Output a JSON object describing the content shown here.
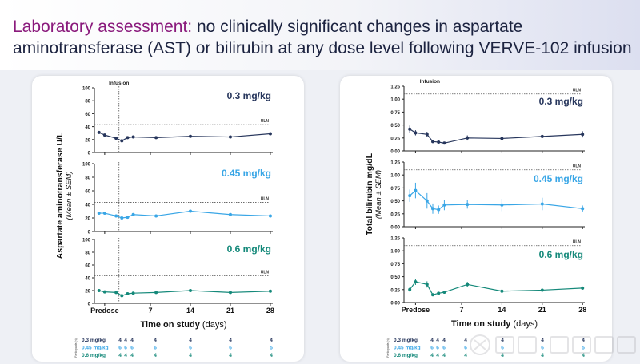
{
  "title": {
    "accent": "Laboratory assessment:",
    "rest": " no clinically significant changes in aspartate aminotransferase (AST) or bilirubin at any dose level following VERVE-102 infusion"
  },
  "watermark": "雪球 医药笔记",
  "colors": {
    "0.3 mg/kg": "#27365c",
    "0.45 mg/kg": "#39a6e6",
    "0.6 mg/kg": "#15897a",
    "accent": "#8a1a7c"
  },
  "participants": {
    "label": "Participants (n)",
    "rows": [
      {
        "dose": "0.3 mg/kg",
        "counts": [
          "4",
          "4",
          "4",
          "4",
          "4",
          "4",
          "4"
        ]
      },
      {
        "dose": "0.45 mg/kg",
        "counts": [
          "6",
          "6",
          "6",
          "6",
          "6",
          "6",
          "5"
        ]
      },
      {
        "dose": "0.6 mg/kg",
        "counts": [
          "4",
          "4",
          "4",
          "4",
          "4",
          "4",
          "4"
        ]
      }
    ]
  },
  "chart_data": [
    {
      "type": "line",
      "ylabel": "Aspartate aminotransferase U/L",
      "ylabel2": "(Mean ± SEM)",
      "xlabel_bold": "Time on study",
      "xlabel_unit": " (days)",
      "x_ticks": [
        {
          "label": "Predose",
          "x": -1
        },
        {
          "label": "7",
          "x": 7
        },
        {
          "label": "14",
          "x": 14
        },
        {
          "label": "21",
          "x": 21
        },
        {
          "label": "28",
          "x": 28
        }
      ],
      "x": [
        -2,
        -1,
        1,
        2,
        3,
        4,
        8,
        14,
        21,
        28
      ],
      "ylim": [
        0,
        100
      ],
      "y_ticks": [
        0,
        20,
        40,
        60,
        80,
        100
      ],
      "infusion": {
        "label": "Infusion",
        "x": 1.5
      },
      "uln": {
        "label": "ULN",
        "y": 43
      },
      "series": [
        {
          "name": "0.3 mg/kg",
          "values": [
            31,
            27,
            22,
            18,
            23,
            24,
            23,
            25,
            24,
            29
          ],
          "sem": [
            1,
            1,
            1,
            1,
            1,
            1,
            1,
            1,
            1,
            1
          ]
        },
        {
          "name": "0.45 mg/kg",
          "values": [
            27,
            27,
            23,
            20,
            21,
            25,
            23,
            30,
            25,
            23
          ],
          "sem": [
            1,
            1,
            1,
            1,
            1,
            2,
            1,
            2,
            1,
            1
          ]
        },
        {
          "name": "0.6 mg/kg",
          "values": [
            20,
            18,
            17,
            12,
            15,
            16,
            17,
            20,
            17,
            19
          ],
          "sem": [
            1,
            1,
            1,
            1,
            1,
            1,
            1,
            1,
            1,
            1
          ]
        }
      ]
    },
    {
      "type": "line",
      "ylabel": "Total bilirubin mg/dL",
      "ylabel2": "(Mean ± SEM)",
      "xlabel_bold": "Time on study",
      "xlabel_unit": " (days)",
      "x_ticks": [
        {
          "label": "Predose",
          "x": -1
        },
        {
          "label": "7",
          "x": 7
        },
        {
          "label": "14",
          "x": 14
        },
        {
          "label": "21",
          "x": 21
        },
        {
          "label": "28",
          "x": 28
        }
      ],
      "x": [
        -2,
        -1,
        1,
        2,
        3,
        4,
        8,
        14,
        21,
        28
      ],
      "ylim": [
        0,
        1.25
      ],
      "y_ticks": [
        "0.00",
        "0.25",
        "0.50",
        "0.75",
        "1.00",
        "1.25"
      ],
      "infusion": {
        "label": "Infusion",
        "x": 1.5
      },
      "uln": {
        "label": "ULN",
        "y": 1.1
      },
      "series": [
        {
          "name": "0.3 mg/kg",
          "values": [
            0.42,
            0.35,
            0.32,
            0.18,
            0.17,
            0.15,
            0.25,
            0.24,
            0.28,
            0.32
          ],
          "sem": [
            0.07,
            0.05,
            0.05,
            0.02,
            0.02,
            0.02,
            0.05,
            0.02,
            0.03,
            0.06
          ]
        },
        {
          "name": "0.45 mg/kg",
          "values": [
            0.6,
            0.7,
            0.5,
            0.35,
            0.33,
            0.42,
            0.43,
            0.42,
            0.44,
            0.35
          ],
          "sem": [
            0.12,
            0.15,
            0.15,
            0.1,
            0.08,
            0.1,
            0.08,
            0.12,
            0.12,
            0.06
          ]
        },
        {
          "name": "0.6 mg/kg",
          "values": [
            0.25,
            0.4,
            0.35,
            0.15,
            0.18,
            0.2,
            0.35,
            0.22,
            0.24,
            0.28
          ],
          "sem": [
            0.04,
            0.06,
            0.06,
            0.02,
            0.02,
            0.03,
            0.05,
            0.03,
            0.03,
            0.03
          ]
        }
      ]
    }
  ]
}
